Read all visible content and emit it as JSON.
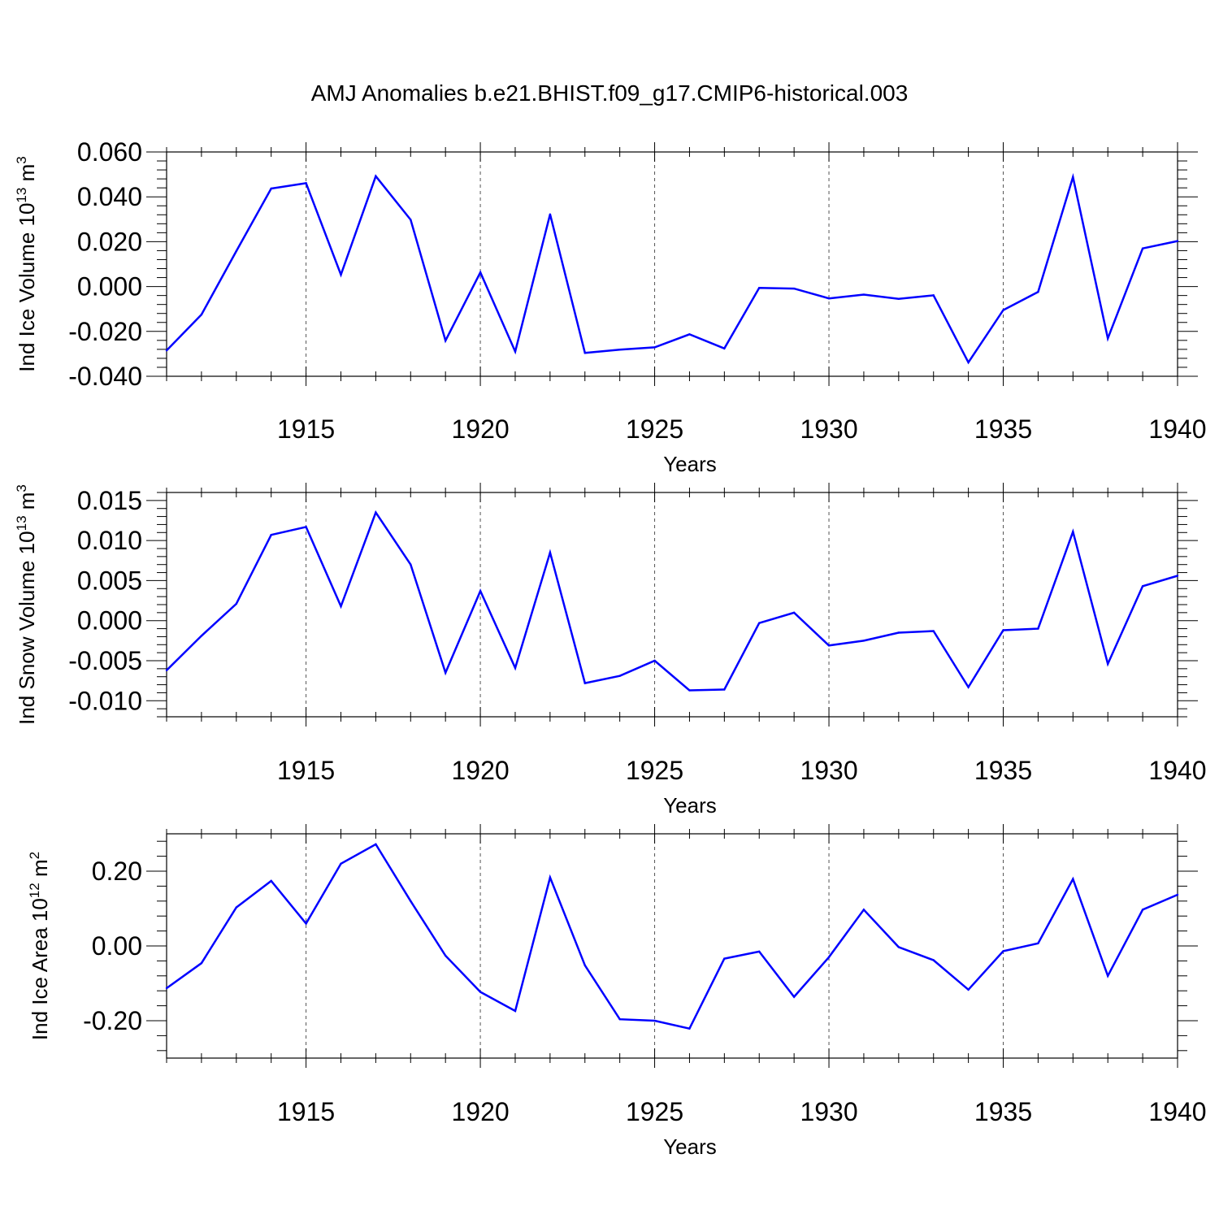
{
  "title": "AMJ Anomalies b.e21.BHIST.f09_g17.CMIP6-historical.003",
  "line_color": "#0000ff",
  "chart_data": [
    {
      "type": "line",
      "ylabel_main": "Ind Ice Volume 10",
      "ylabel_exp": "13",
      "ylabel_unit": " m",
      "ylabel_unit_exp": "3",
      "xlabel": "Years",
      "xlim": [
        1911,
        1940
      ],
      "ylim": [
        -0.04,
        0.06
      ],
      "yticks": [
        0.06,
        0.04,
        0.02,
        0.0,
        -0.02,
        -0.04
      ],
      "ytick_labels": [
        "0.060",
        "0.040",
        "0.020",
        "0.000",
        "-0.020",
        "-0.040"
      ],
      "xticks": [
        1915,
        1920,
        1925,
        1930,
        1935,
        1940
      ],
      "xtick_labels": [
        "1915",
        "1920",
        "1925",
        "1930",
        "1935",
        "1940"
      ],
      "x": [
        1911,
        1912,
        1913,
        1914,
        1915,
        1916,
        1917,
        1918,
        1919,
        1920,
        1921,
        1922,
        1923,
        1924,
        1925,
        1926,
        1927,
        1928,
        1929,
        1930,
        1931,
        1932,
        1933,
        1934,
        1935,
        1936,
        1937,
        1938,
        1939,
        1940
      ],
      "values": [
        -0.0285,
        -0.0125,
        0.0158,
        0.0437,
        0.0461,
        0.0053,
        0.0492,
        0.0298,
        -0.0241,
        0.0063,
        -0.029,
        0.0322,
        -0.0296,
        -0.0281,
        -0.0271,
        -0.0213,
        -0.0276,
        -0.0006,
        -0.0009,
        -0.0053,
        -0.0036,
        -0.0055,
        -0.0039,
        -0.0338,
        -0.0105,
        -0.0024,
        0.0488,
        -0.0231,
        0.017,
        0.0203
      ]
    },
    {
      "type": "line",
      "ylabel_main": "Ind Snow Volume 10",
      "ylabel_exp": "13",
      "ylabel_unit": " m",
      "ylabel_unit_exp": "3",
      "xlabel": "Years",
      "xlim": [
        1911,
        1940
      ],
      "ylim": [
        -0.012,
        0.016
      ],
      "yticks": [
        0.015,
        0.01,
        0.005,
        0.0,
        -0.005,
        -0.01
      ],
      "ytick_labels": [
        "0.015",
        "0.010",
        "0.005",
        "0.000",
        "-0.005",
        "-0.010"
      ],
      "xticks": [
        1915,
        1920,
        1925,
        1930,
        1935,
        1940
      ],
      "xtick_labels": [
        "1915",
        "1920",
        "1925",
        "1930",
        "1935",
        "1940"
      ],
      "x": [
        1911,
        1912,
        1913,
        1914,
        1915,
        1916,
        1917,
        1918,
        1919,
        1920,
        1921,
        1922,
        1923,
        1924,
        1925,
        1926,
        1927,
        1928,
        1929,
        1930,
        1931,
        1932,
        1933,
        1934,
        1935,
        1936,
        1937,
        1938,
        1939,
        1940
      ],
      "values": [
        -0.0062,
        -0.0019,
        0.0021,
        0.0107,
        0.0117,
        0.0018,
        0.0135,
        0.007,
        -0.0065,
        0.0037,
        -0.0059,
        0.0085,
        -0.0078,
        -0.0069,
        -0.005,
        -0.0087,
        -0.0086,
        -0.0003,
        0.001,
        -0.0031,
        -0.0025,
        -0.0015,
        -0.0013,
        -0.0083,
        -0.0012,
        -0.001,
        0.0111,
        -0.0054,
        0.0043,
        0.0056
      ]
    },
    {
      "type": "line",
      "ylabel_main": "Ind Ice Area 10",
      "ylabel_exp": "12",
      "ylabel_unit": " m",
      "ylabel_unit_exp": "2",
      "xlabel": "Years",
      "xlim": [
        1911,
        1940
      ],
      "ylim": [
        -0.3,
        0.3
      ],
      "yticks": [
        0.2,
        0.0,
        -0.2
      ],
      "ytick_labels": [
        "0.20",
        "0.00",
        "-0.20"
      ],
      "xticks": [
        1915,
        1920,
        1925,
        1930,
        1935,
        1940
      ],
      "xtick_labels": [
        "1915",
        "1920",
        "1925",
        "1930",
        "1935",
        "1940"
      ],
      "x": [
        1911,
        1912,
        1913,
        1914,
        1915,
        1916,
        1917,
        1918,
        1919,
        1920,
        1921,
        1922,
        1923,
        1924,
        1925,
        1926,
        1927,
        1928,
        1929,
        1930,
        1931,
        1932,
        1933,
        1934,
        1935,
        1936,
        1937,
        1938,
        1939,
        1940
      ],
      "values": [
        -0.113,
        -0.046,
        0.103,
        0.174,
        0.06,
        0.22,
        0.272,
        0.12,
        -0.026,
        -0.123,
        -0.174,
        0.183,
        -0.052,
        -0.196,
        -0.2,
        -0.221,
        -0.034,
        -0.015,
        -0.136,
        -0.03,
        0.097,
        -0.003,
        -0.038,
        -0.117,
        -0.014,
        0.007,
        0.179,
        -0.08,
        0.097,
        0.137
      ]
    }
  ]
}
